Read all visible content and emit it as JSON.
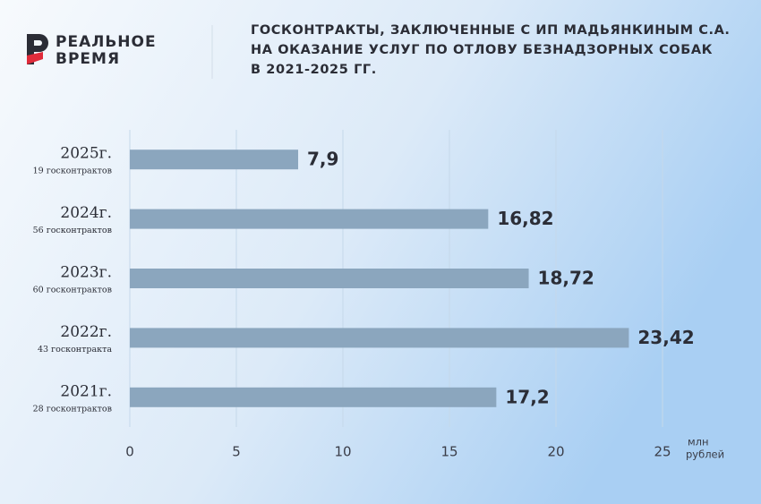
{
  "logo": [
    "РЕАЛЬНОЕ",
    "ВРЕМЯ"
  ],
  "chart_data": {
    "type": "hbar",
    "title": [
      "ГОСКОНТРАКТЫ, ЗАКЛЮЧЕННЫЕ С  ИП МАДЬЯНКИНЫМ С.А.",
      "НА ОКАЗАНИЕ УСЛУГ ПО ОТЛОВУ БЕЗНАДЗОРНЫХ СОБАК",
      "В 2021-2025 ГГ."
    ],
    "categories": [
      "2025г.",
      "2024г.",
      "2023г.",
      "2022г.",
      "2021г."
    ],
    "category_notes": [
      "19 госконтрактов",
      "56 госконтрактов",
      "60 госконтрактов",
      "43 госконтракта",
      "28 госконтрактов"
    ],
    "values": [
      7.9,
      16.82,
      18.72,
      23.42,
      17.2
    ],
    "value_labels": [
      "7,9",
      "16,82",
      "18,72",
      "23,42",
      "17,2"
    ],
    "color": "#8ba6be",
    "xlim": [
      0,
      25
    ],
    "xticks": [
      0,
      5,
      10,
      15,
      20,
      25
    ],
    "x_axis_label": [
      "млн",
      "рублей"
    ],
    "grid": true
  }
}
